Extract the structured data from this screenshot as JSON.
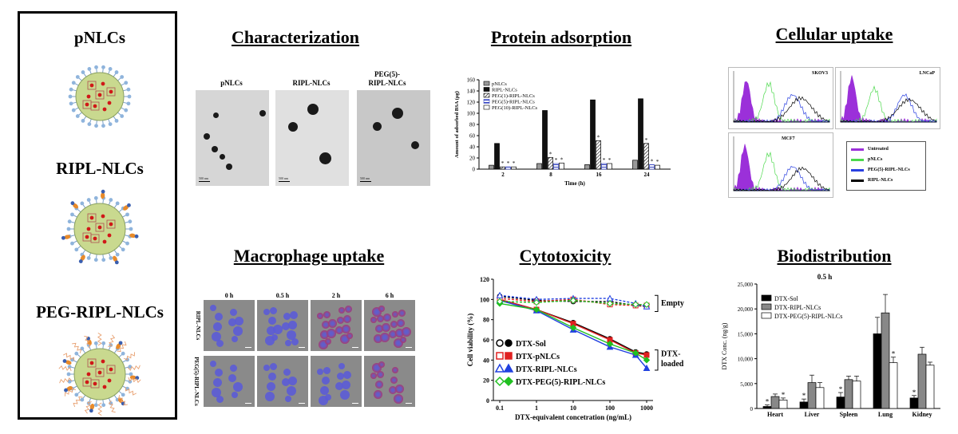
{
  "left_panel": {
    "items": [
      {
        "label": "pNLCs"
      },
      {
        "label": "RIPL-NLCs"
      },
      {
        "label": "PEG-RIPL-NLCs"
      }
    ]
  },
  "characterization": {
    "title": "Characterization",
    "panels": [
      {
        "label": "pNLCs"
      },
      {
        "label": "RIPL-NLCs"
      },
      {
        "label": "PEG(5)-RIPL-NLCs"
      }
    ],
    "scale_text": "500 nm"
  },
  "protein_adsorption": {
    "title": "Protein adsorption",
    "chart_data": {
      "type": "bar",
      "categories": [
        "2",
        "8",
        "16",
        "24"
      ],
      "xlabel": "Time (h)",
      "ylabel": "Amount of adsorbed BSA (μg)",
      "ylim": [
        0,
        160
      ],
      "yticks": [
        "0",
        "20",
        "40",
        "60",
        "80",
        "100",
        "120",
        "140",
        "160"
      ],
      "legend_position": "top-left",
      "series": [
        {
          "name": "pNLCs",
          "values": [
            7,
            10,
            8,
            16
          ]
        },
        {
          "name": "RIPL-NLCs",
          "values": [
            46,
            105,
            124,
            126
          ]
        },
        {
          "name": "PEG(1)-RIPL-NLCs",
          "values": [
            4,
            21,
            51,
            46
          ]
        },
        {
          "name": "PEG(5)-RIPL-NLCs",
          "values": [
            4,
            10,
            10,
            8
          ]
        },
        {
          "name": "PEG(10)-RIPL-NLCs",
          "values": [
            4,
            11,
            10,
            7
          ]
        }
      ],
      "annotation": "*"
    }
  },
  "cellular_uptake": {
    "title": "Cellular uptake",
    "panels": [
      {
        "label": "SKOV3"
      },
      {
        "label": "LNCaP"
      },
      {
        "label": "MCF7"
      }
    ],
    "legend": [
      {
        "name": "Untreated",
        "color": "#9b30d9"
      },
      {
        "name": "pNLCs",
        "color": "#4cd94c"
      },
      {
        "name": "PEG(5)-RIPL-NLCs",
        "color": "#2a40e0"
      },
      {
        "name": "RIPL-NLCs",
        "color": "#000000"
      }
    ]
  },
  "macrophage_uptake": {
    "title": "Macrophage uptake",
    "times": [
      "0 h",
      "0.5 h",
      "2 h",
      "6 h"
    ],
    "rows": [
      {
        "label": "RIPL-NLCs"
      },
      {
        "label": "PEG(5)-RIPL-NLCs"
      }
    ]
  },
  "cytotoxicity": {
    "title": "Cytotoxicity",
    "chart_data": {
      "type": "line",
      "x": [
        0.1,
        1,
        10,
        100,
        500,
        1000
      ],
      "xticks": [
        "0.1",
        "1",
        "10",
        "100",
        "1000"
      ],
      "xlabel": "DTX-equivalent concetration (ng/mL)",
      "ylabel": "Cell viability (%)",
      "ylim": [
        0,
        120
      ],
      "yticks": [
        "0",
        "20",
        "40",
        "60",
        "80",
        "100",
        "120"
      ],
      "xscale": "log",
      "series": [
        {
          "name": "DTX-Sol",
          "values": [
            100,
            90,
            77,
            61,
            48,
            46
          ],
          "color": "#000000"
        },
        {
          "name": "DTX-pNLCs",
          "values": [
            100,
            90,
            76,
            60,
            47,
            45
          ],
          "color": "#e02020"
        },
        {
          "name": "DTX-RIPL-NLCs",
          "values": [
            99,
            89,
            70,
            53,
            45,
            32
          ],
          "color": "#2040e0"
        },
        {
          "name": "DTX-PEG(5)-RIPL-NLCs",
          "values": [
            96,
            90,
            72,
            56,
            47,
            40
          ],
          "color": "#20c020"
        },
        {
          "name": "empty-1",
          "values": [
            103,
            99,
            98,
            98,
            94,
            93
          ],
          "color": "#000000"
        },
        {
          "name": "empty-2",
          "values": [
            101,
            98,
            100,
            95,
            94,
            94
          ],
          "color": "#e02020"
        },
        {
          "name": "empty-3",
          "values": [
            104,
            100,
            101,
            101,
            96,
            93
          ],
          "color": "#2040e0"
        },
        {
          "name": "empty-4",
          "values": [
            98,
            97,
            99,
            96,
            95,
            95
          ],
          "color": "#20c020"
        }
      ],
      "annotations": [
        "Empty",
        "DTX-loaded"
      ]
    }
  },
  "biodistribution": {
    "title": "Biodistribution",
    "chart_data": {
      "type": "bar",
      "title": "0.5 h",
      "categories": [
        "Heart",
        "Liver",
        "Spleen",
        "Lung",
        "Kidney"
      ],
      "ylabel": "DTX Conc. (ng/g)",
      "ylim": [
        0,
        25000
      ],
      "yticks": [
        "0",
        "5,000",
        "10,000",
        "15,000",
        "20,000",
        "25,000"
      ],
      "legend_position": "top-left",
      "series": [
        {
          "name": "DTX-Sol",
          "values": [
            400,
            1300,
            2300,
            15000,
            2100
          ],
          "color": "#000000"
        },
        {
          "name": "DTX-RIPL-NLCs",
          "values": [
            2400,
            5200,
            5800,
            19200,
            10900
          ],
          "color": "#888888"
        },
        {
          "name": "DTX-PEG(5)-RIPL-NLCs",
          "values": [
            1700,
            4200,
            5500,
            9200,
            8700
          ],
          "color": "#ffffff"
        }
      ],
      "annotation": "*"
    }
  }
}
